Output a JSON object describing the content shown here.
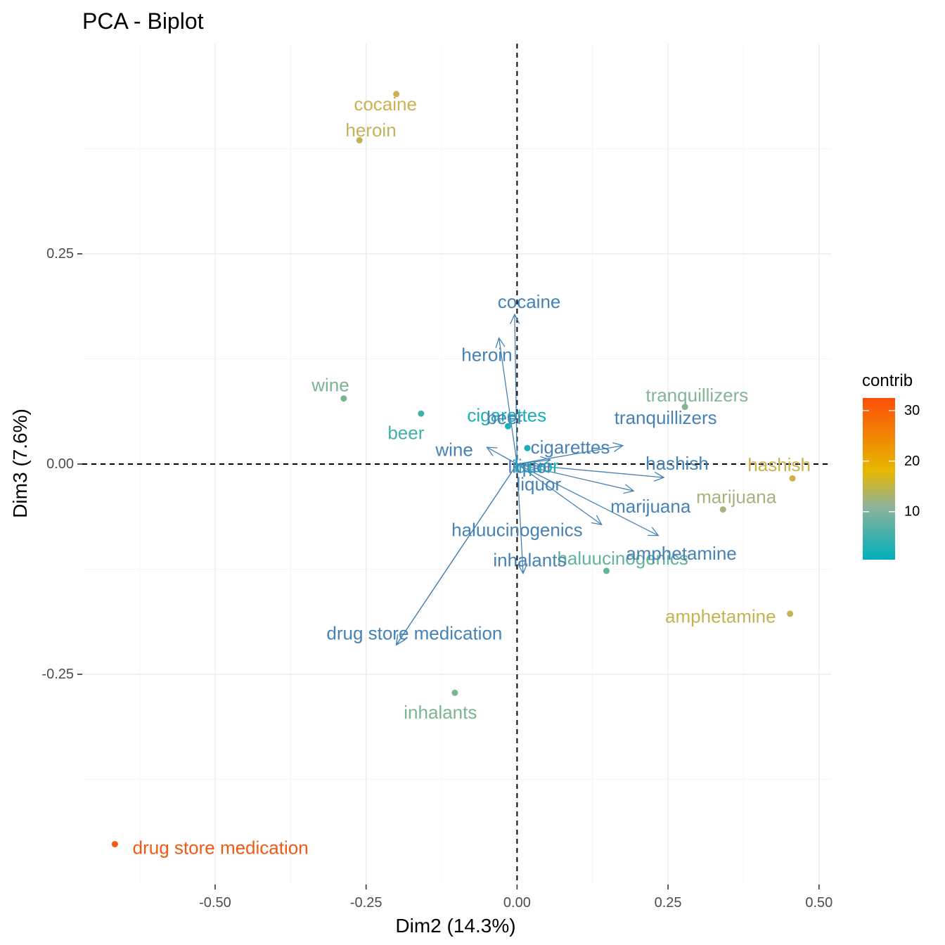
{
  "chart_data": {
    "type": "scatter",
    "title": "PCA - Biplot",
    "xlabel": "Dim2 (14.3%)",
    "ylabel": "Dim3 (7.6%)",
    "xlim": [
      -0.72,
      0.52
    ],
    "ylim": [
      -0.5,
      0.5
    ],
    "x_ticks": [
      -0.5,
      -0.25,
      0.0,
      0.25,
      0.5
    ],
    "x_tick_labels": [
      "-0.50",
      "-0.25",
      "0.00",
      "0.25",
      "0.50"
    ],
    "y_ticks": [
      -0.25,
      0.0,
      0.25
    ],
    "y_tick_labels": [
      "-0.25",
      "0.00",
      "0.25"
    ],
    "grid": true,
    "reference_lines": {
      "x": 0,
      "y": 0,
      "style": "dashed"
    },
    "legend": {
      "title": "contrib",
      "placement": "right",
      "range": [
        0.5,
        32.5
      ],
      "ticks": [
        10,
        20,
        30
      ],
      "tick_labels": [
        "10",
        "20",
        "30"
      ],
      "colors": [
        "#00afbb",
        "#e7b800",
        "#fc4e07"
      ]
    },
    "variables": [
      {
        "name": "cocaine",
        "x": -0.004,
        "y": 0.178
      },
      {
        "name": "heroin",
        "x": -0.03,
        "y": 0.15
      },
      {
        "name": "cigarettes",
        "x": 0.175,
        "y": 0.022
      },
      {
        "name": "beer",
        "x": 0.055,
        "y": 0.005
      },
      {
        "name": "wine",
        "x": -0.05,
        "y": 0.02
      },
      {
        "name": "liquor",
        "x": 0.04,
        "y": -0.003
      },
      {
        "name": "hashish",
        "x": 0.243,
        "y": -0.016
      },
      {
        "name": "marijuana",
        "x": 0.193,
        "y": -0.032
      },
      {
        "name": "tranquillizers",
        "x": 0.14,
        "y": -0.072
      },
      {
        "name": "amphetamine",
        "x": 0.234,
        "y": -0.085
      },
      {
        "name": "haluucinogenics",
        "x": 0.01,
        "y": -0.13
      },
      {
        "name": "inhalants",
        "x": -0.2,
        "y": -0.215
      },
      {
        "name": "drug store medication",
        "x": -0.2,
        "y": -0.215
      }
    ],
    "variable_labels": [
      {
        "text": "cocaine",
        "x": 0.02,
        "y": 0.193
      },
      {
        "text": "heroin",
        "x": -0.05,
        "y": 0.13
      },
      {
        "text": "cigarettes",
        "x": 0.088,
        "y": 0.02
      },
      {
        "text": "beer",
        "x": -0.02,
        "y": 0.055
      },
      {
        "text": "wine",
        "x": -0.104,
        "y": 0.017
      },
      {
        "text": "liquor",
        "x": 0.022,
        "y": -0.003
      },
      {
        "text": "liquor",
        "x": 0.036,
        "y": -0.024
      },
      {
        "text": "tranquillizers",
        "x": 0.246,
        "y": 0.055
      },
      {
        "text": "hashish",
        "x": 0.265,
        "y": 0.001
      },
      {
        "text": "marijuana",
        "x": 0.221,
        "y": -0.05
      },
      {
        "text": "amphetamine",
        "x": 0.272,
        "y": -0.106
      },
      {
        "text": "haluucinogenics",
        "x": 0.0,
        "y": -0.078
      },
      {
        "text": "inhalants",
        "x": 0.021,
        "y": -0.114
      },
      {
        "text": "drug store medication",
        "x": -0.17,
        "y": -0.201
      }
    ],
    "individuals": [
      {
        "name": "cocaine",
        "x": -0.2,
        "y": 0.44,
        "contrib": 12,
        "color": "#cdb24e",
        "label_x": -0.218,
        "label_y": 0.428
      },
      {
        "name": "heroin",
        "x": -0.261,
        "y": 0.385,
        "contrib": 11,
        "color": "#c2b25a",
        "label_x": -0.242,
        "label_y": 0.397
      },
      {
        "name": "wine",
        "x": -0.287,
        "y": 0.078,
        "contrib": 5,
        "color": "#79b58f",
        "label_x": -0.309,
        "label_y": 0.094
      },
      {
        "name": "beer",
        "x": -0.159,
        "y": 0.06,
        "contrib": 2,
        "color": "#44b1a8",
        "label_x": -0.184,
        "label_y": 0.037
      },
      {
        "name": "cigarettes",
        "x": 0.017,
        "y": 0.019,
        "contrib": 0.7,
        "color": "#18aebb",
        "label_x": -0.017,
        "label_y": 0.058
      },
      {
        "name": "liquor",
        "x": -0.015,
        "y": 0.045,
        "contrib": 0.8,
        "color": "#1aafba",
        "label_x": 0.032,
        "label_y": -0.002
      },
      {
        "name": "tranquillizers",
        "x": 0.278,
        "y": 0.068,
        "contrib": 5,
        "color": "#84b594",
        "label_x": 0.298,
        "label_y": 0.082
      },
      {
        "name": "hashish",
        "x": 0.456,
        "y": -0.017,
        "contrib": 13,
        "color": "#cbb24d",
        "label_x": 0.434,
        "label_y": -0.001
      },
      {
        "name": "marijuana",
        "x": 0.341,
        "y": -0.054,
        "contrib": 8,
        "color": "#a5b37e",
        "label_x": 0.363,
        "label_y": -0.039
      },
      {
        "name": "haluucinogenics",
        "x": 0.148,
        "y": -0.127,
        "contrib": 3,
        "color": "#62b39e",
        "label_x": 0.175,
        "label_y": -0.112
      },
      {
        "name": "amphetamine",
        "x": 0.452,
        "y": -0.178,
        "contrib": 12,
        "color": "#c7b252",
        "label_x": 0.337,
        "label_y": -0.181
      },
      {
        "name": "inhalants",
        "x": -0.103,
        "y": -0.272,
        "contrib": 5,
        "color": "#7cb590",
        "label_x": -0.127,
        "label_y": -0.295
      },
      {
        "name": "drug store medication",
        "x": -0.666,
        "y": -0.452,
        "contrib": 32,
        "color": "#f25a13",
        "label_x": -0.491,
        "label_y": -0.456
      }
    ]
  }
}
